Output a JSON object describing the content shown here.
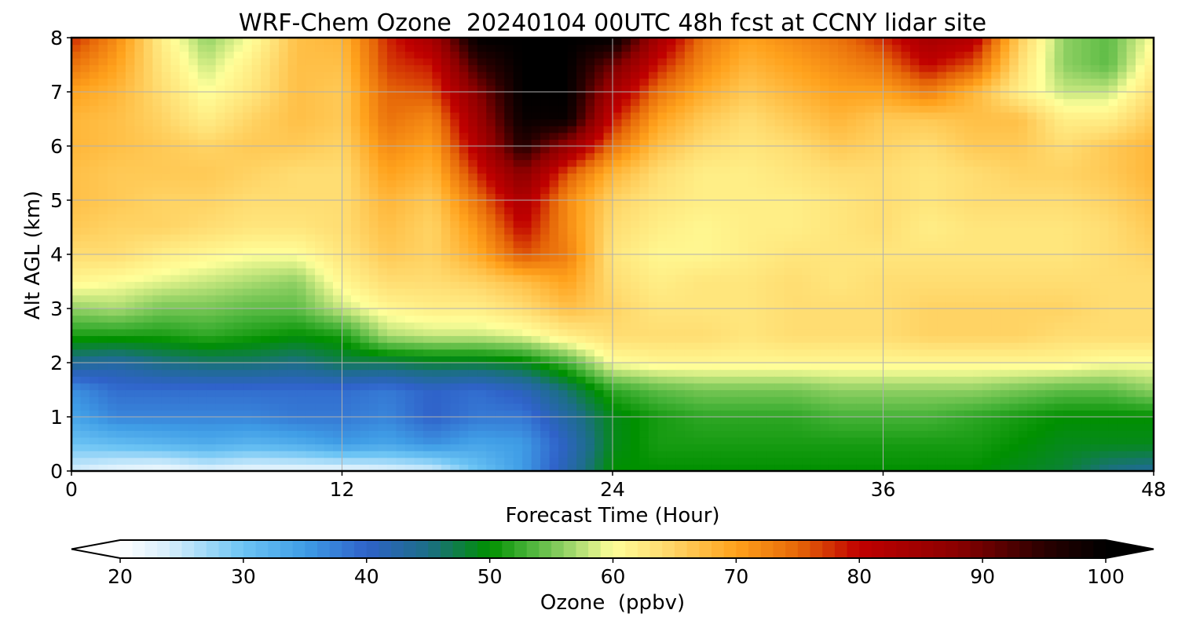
{
  "chart_data": {
    "type": "heatmap",
    "title": "WRF-Chem Ozone  20240104 00UTC 48h fcst at CCNY lidar site",
    "xlabel": "Forecast Time (Hour)",
    "ylabel": "Alt AGL (km)",
    "xlim": [
      0,
      48
    ],
    "ylim": [
      0,
      8
    ],
    "x_ticks": [
      "0",
      "12",
      "24",
      "36",
      "48"
    ],
    "y_ticks": [
      "0",
      "1",
      "2",
      "3",
      "4",
      "5",
      "6",
      "7",
      "8"
    ],
    "grid": true,
    "x": [
      0,
      2,
      4,
      6,
      8,
      10,
      12,
      14,
      16,
      18,
      20,
      22,
      24,
      26,
      28,
      30,
      32,
      34,
      36,
      38,
      40,
      42,
      44,
      46,
      48
    ],
    "y": [
      0,
      0.5,
      1,
      1.5,
      2,
      2.5,
      3,
      3.5,
      4,
      4.5,
      5,
      5.5,
      6,
      6.5,
      7,
      7.5,
      8
    ],
    "z": [
      [
        24,
        22,
        21,
        23,
        22,
        22,
        22,
        23,
        24,
        30,
        35,
        42,
        50,
        50,
        50,
        50,
        50,
        50,
        50,
        50,
        50,
        49,
        48,
        45,
        44
      ],
      [
        30,
        31,
        32,
        33,
        32,
        33,
        35,
        34,
        36,
        34,
        35,
        41,
        49,
        51,
        51,
        51,
        51,
        51,
        51,
        51,
        51,
        50,
        49,
        49,
        49
      ],
      [
        34,
        37,
        37,
        37,
        37,
        38,
        38,
        37,
        40,
        38,
        38,
        43,
        49,
        51,
        52,
        52,
        52,
        53,
        53,
        53,
        52,
        51,
        50,
        50,
        50
      ],
      [
        36,
        39,
        39,
        39,
        39,
        39,
        39,
        38,
        40,
        39,
        41,
        46,
        52,
        54,
        55,
        55,
        55,
        56,
        56,
        56,
        56,
        55,
        54,
        54,
        56
      ],
      [
        44,
        43,
        45,
        46,
        46,
        45,
        47,
        47,
        48,
        48,
        49,
        53,
        60,
        61,
        61,
        61,
        61,
        61,
        61,
        61,
        61,
        61,
        61,
        60,
        60
      ],
      [
        51,
        51,
        51,
        52,
        51,
        50,
        51,
        57,
        58,
        58,
        59,
        62,
        64,
        64,
        64,
        63,
        64,
        64,
        64,
        65,
        65,
        65,
        64,
        64,
        64
      ],
      [
        56,
        57,
        55,
        55,
        54,
        54,
        58,
        61,
        62,
        62,
        64,
        67,
        65,
        63,
        63,
        63,
        64,
        64,
        64,
        65,
        65,
        65,
        65,
        64,
        64
      ],
      [
        61,
        60,
        59,
        58,
        57,
        56,
        61,
        64,
        64,
        65,
        67,
        70,
        64,
        62,
        63,
        63,
        64,
        63,
        64,
        64,
        64,
        64,
        64,
        64,
        64
      ],
      [
        64,
        64,
        62,
        61,
        60,
        60,
        63,
        66,
        65,
        69,
        76,
        73,
        63,
        61,
        61,
        62,
        63,
        63,
        63,
        63,
        63,
        63,
        63,
        64,
        65
      ],
      [
        66,
        65,
        65,
        64,
        63,
        63,
        64,
        67,
        65,
        71,
        80,
        72,
        64,
        62,
        61,
        62,
        62,
        63,
        64,
        62,
        63,
        63,
        63,
        64,
        66
      ],
      [
        67,
        66,
        65,
        65,
        64,
        64,
        64,
        68,
        66,
        74,
        83,
        72,
        65,
        63,
        62,
        62,
        62,
        63,
        64,
        63,
        64,
        64,
        64,
        65,
        67
      ],
      [
        67,
        66,
        66,
        66,
        65,
        64,
        64,
        70,
        68,
        78,
        88,
        76,
        68,
        64,
        62,
        62,
        63,
        64,
        64,
        63,
        64,
        65,
        65,
        66,
        68
      ],
      [
        68,
        67,
        66,
        65,
        66,
        66,
        65,
        72,
        70,
        82,
        96,
        86,
        74,
        67,
        64,
        63,
        64,
        66,
        65,
        64,
        66,
        66,
        64,
        66,
        68
      ],
      [
        68,
        67,
        65,
        62,
        65,
        67,
        66,
        74,
        72,
        85,
        99,
        99,
        79,
        70,
        66,
        64,
        66,
        68,
        66,
        66,
        67,
        67,
        62,
        62,
        66
      ],
      [
        70,
        68,
        64,
        60,
        63,
        67,
        66,
        75,
        76,
        88,
        100,
        100,
        84,
        74,
        69,
        66,
        68,
        70,
        70,
        73,
        68,
        62,
        58,
        58,
        64
      ],
      [
        74,
        70,
        63,
        58,
        62,
        67,
        67,
        77,
        79,
        94,
        100,
        100,
        90,
        79,
        72,
        68,
        70,
        72,
        74,
        80,
        76,
        64,
        56,
        54,
        62
      ],
      [
        78,
        72,
        62,
        56,
        60,
        67,
        68,
        78,
        84,
        100,
        100,
        100,
        100,
        84,
        74,
        70,
        72,
        74,
        78,
        84,
        82,
        66,
        56,
        54,
        60
      ]
    ],
    "colorbar": {
      "label": "Ozone  (ppbv)",
      "min": 20,
      "max": 100,
      "extend": "both",
      "ticks": [
        "20",
        "30",
        "40",
        "50",
        "60",
        "70",
        "80",
        "90",
        "100"
      ],
      "stops": [
        {
          "v": 20,
          "c": "#ffffff"
        },
        {
          "v": 24,
          "c": "#d6eefc"
        },
        {
          "v": 30,
          "c": "#6cc4f4"
        },
        {
          "v": 35,
          "c": "#3f9de6"
        },
        {
          "v": 40,
          "c": "#2f62c9"
        },
        {
          "v": 45,
          "c": "#1c6e86"
        },
        {
          "v": 50,
          "c": "#009000"
        },
        {
          "v": 53,
          "c": "#45b237"
        },
        {
          "v": 56,
          "c": "#8fd063"
        },
        {
          "v": 60,
          "c": "#ffff9a"
        },
        {
          "v": 64,
          "c": "#ffdd72"
        },
        {
          "v": 70,
          "c": "#ffa21c"
        },
        {
          "v": 75,
          "c": "#e66708"
        },
        {
          "v": 80,
          "c": "#c00000"
        },
        {
          "v": 88,
          "c": "#8a0000"
        },
        {
          "v": 95,
          "c": "#2a0000"
        },
        {
          "v": 100,
          "c": "#000000"
        }
      ]
    }
  }
}
